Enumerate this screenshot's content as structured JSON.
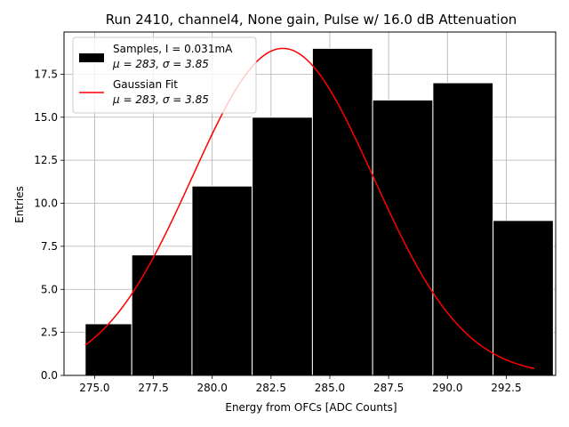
{
  "chart_data": {
    "type": "bar",
    "title": "Run 2410, channel4, None gain, Pulse w/ 16.0 dB Attenuation",
    "xlabel": "Energy from OFCs [ADC Counts]",
    "ylabel": "Entries",
    "xlim": [
      273.7,
      294.6
    ],
    "ylim": [
      0,
      19.95
    ],
    "grid": true,
    "legend_position": "top-left",
    "xticks": [
      275.0,
      277.5,
      280.0,
      282.5,
      285.0,
      287.5,
      290.0,
      292.5
    ],
    "xtick_labels": [
      "275.0",
      "277.5",
      "280.0",
      "282.5",
      "285.0",
      "287.5",
      "290.0",
      "292.5"
    ],
    "yticks": [
      0.0,
      2.5,
      5.0,
      7.5,
      10.0,
      12.5,
      15.0,
      17.5
    ],
    "ytick_labels": [
      "0.0",
      "2.5",
      "5.0",
      "7.5",
      "10.0",
      "12.5",
      "15.0",
      "17.5"
    ],
    "bins": [
      {
        "x0": 274.6,
        "x1": 276.58,
        "count": 3
      },
      {
        "x0": 276.58,
        "x1": 279.14,
        "count": 7
      },
      {
        "x0": 279.14,
        "x1": 281.7,
        "count": 11
      },
      {
        "x0": 281.7,
        "x1": 284.26,
        "count": 15
      },
      {
        "x0": 284.26,
        "x1": 286.82,
        "count": 19
      },
      {
        "x0": 286.82,
        "x1": 289.38,
        "count": 16
      },
      {
        "x0": 289.38,
        "x1": 291.94,
        "count": 17
      },
      {
        "x0": 291.94,
        "x1": 294.5,
        "count": 9
      }
    ],
    "series": [
      {
        "name": "Samples, I = 0.031mA",
        "stats": "μ = 283, σ = 3.85",
        "type": "histogram",
        "color": "#000000"
      },
      {
        "name": "Gaussian Fit",
        "stats": "μ = 283, σ = 3.85",
        "type": "line",
        "color": "#ff0000",
        "mu": 283.0,
        "sigma": 3.85,
        "amplitude": 19.0,
        "x_range": [
          274.6,
          293.7
        ]
      }
    ]
  }
}
